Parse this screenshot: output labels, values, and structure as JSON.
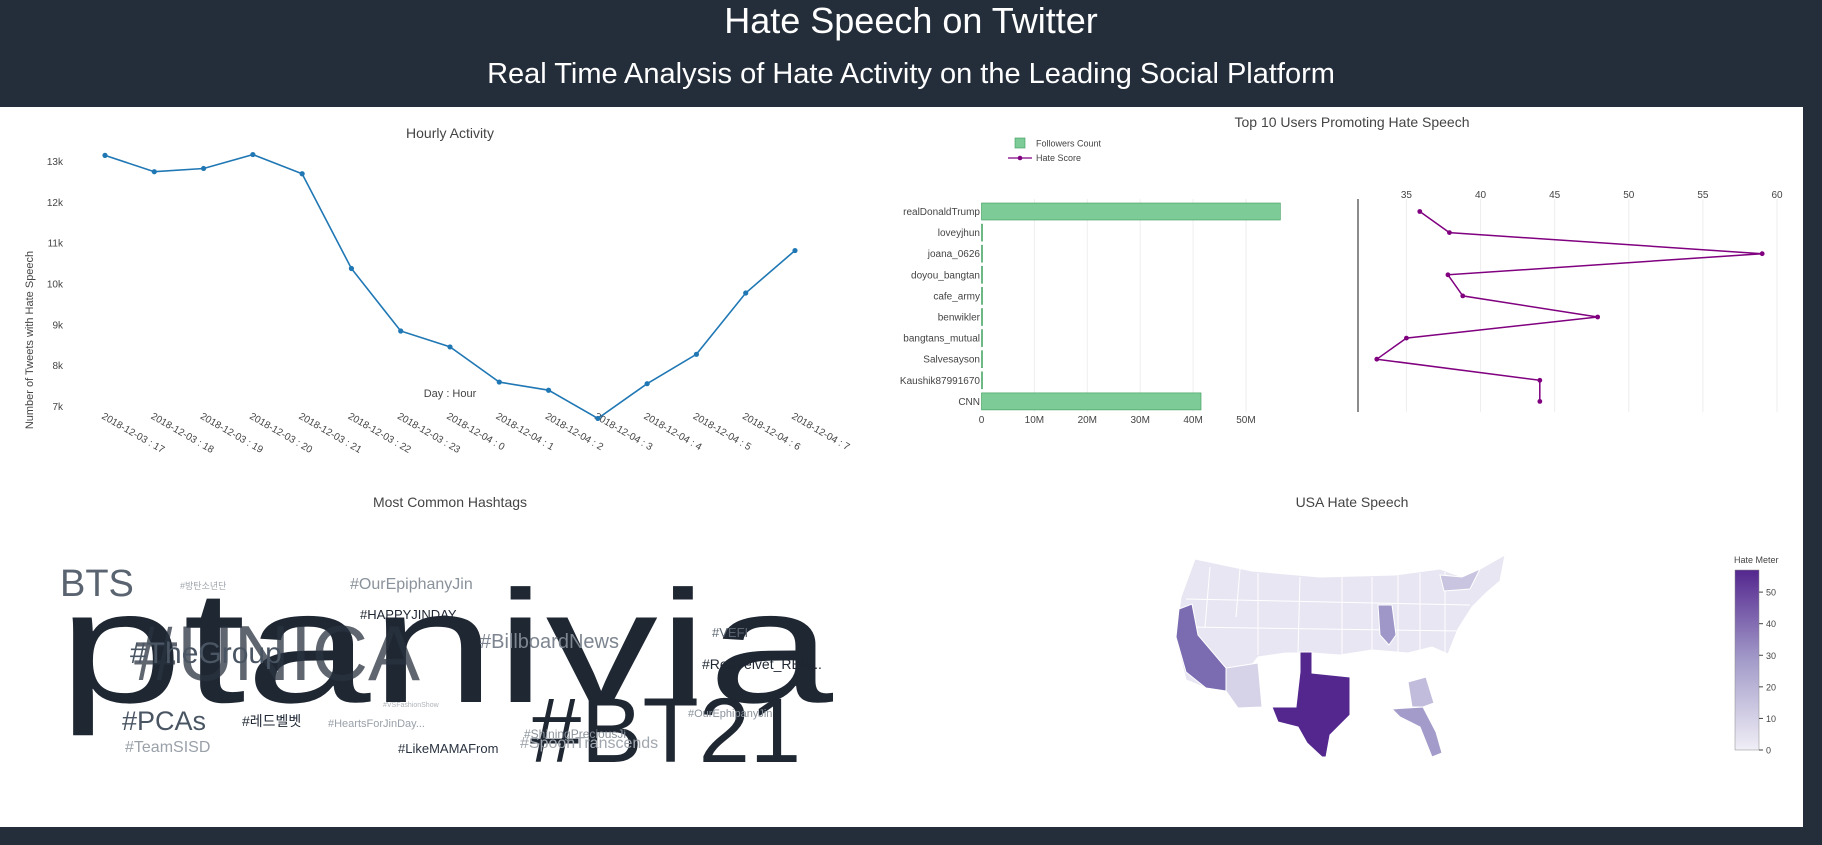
{
  "header": {
    "title": "Hate Speech on Twitter",
    "subtitle": "Real Time Analysis of Hate Activity on the Leading Social Platform"
  },
  "colors": {
    "header_bg": "#242e3b",
    "line": "#1f77b4",
    "bar": "#7dcc97",
    "bar_edge": "#3a9a5a",
    "score": "#800080",
    "map_low": "#f0eef6",
    "map_high": "#54278f"
  },
  "chart_data": [
    {
      "id": "hourly",
      "type": "line",
      "title": "Hourly Activity",
      "xlabel": "Day : Hour",
      "ylabel": "Number of Tweets with Hate Speech",
      "categories": [
        "2018-12-03 : 17",
        "2018-12-03 : 18",
        "2018-12-03 : 19",
        "2018-12-03 : 20",
        "2018-12-03 : 21",
        "2018-12-03 : 22",
        "2018-12-03 : 23",
        "2018-12-04 : 0",
        "2018-12-04 : 1",
        "2018-12-04 : 2",
        "2018-12-04 : 3",
        "2018-12-04 : 4",
        "2018-12-04 : 5",
        "2018-12-04 : 6",
        "2018-12-04 : 7"
      ],
      "values": [
        13150,
        12750,
        12830,
        13170,
        12700,
        10380,
        8850,
        8460,
        7600,
        7400,
        6710,
        7560,
        8280,
        9780,
        10820
      ],
      "yticks": [
        "7k",
        "8k",
        "9k",
        "10k",
        "11k",
        "12k",
        "13k"
      ],
      "ylim": [
        6500,
        13600
      ],
      "grid": false
    },
    {
      "id": "top_users",
      "type": "bar",
      "title": "Top 10 Users Promoting Hate Speech",
      "categories": [
        "realDonaldTrump",
        "loveyjhun",
        "joana_0626",
        "doyou_bangtan",
        "cafe_army",
        "benwikler",
        "bangtans_mutual",
        "Salvesayson",
        "Kaushik87991670",
        "CNN"
      ],
      "series": [
        {
          "name": "Followers Count",
          "type": "bar",
          "values": [
            56500000,
            0,
            50000,
            100000,
            80000,
            150000,
            60000,
            150000,
            3000,
            41500000
          ]
        },
        {
          "name": "Hate Score",
          "type": "line",
          "values": [
            35.9,
            37.9,
            59,
            37.8,
            38.8,
            47.9,
            35,
            33,
            44,
            44
          ]
        }
      ],
      "followers_ticks": [
        "0",
        "10M",
        "20M",
        "30M",
        "40M",
        "50M"
      ],
      "followers_range": [
        0,
        57000000
      ],
      "score_ticks": [
        "35",
        "40",
        "45",
        "50",
        "55",
        "60"
      ],
      "score_range": [
        31.8,
        60
      ],
      "legend_position": "top-left"
    },
    {
      "id": "hashtags",
      "type": "wordcloud",
      "title": "Most Common Hashtags",
      "words": [
        {
          "text": "ptanivia",
          "color": "#1f2733"
        },
        {
          "text": "#BT21",
          "color": "#1f2733"
        },
        {
          "text": "#UNICA",
          "color": "#2a3340"
        },
        {
          "text": "#TheGroup",
          "color": "#4a5563"
        },
        {
          "text": "BTS",
          "color": "#5a6470"
        },
        {
          "text": "#방탄소년단",
          "color": "#a0a6ad"
        },
        {
          "text": "#OurEpiphanyJin",
          "color": "#8a929b"
        },
        {
          "text": "#HAPPYJINDAY",
          "color": "#1f2733"
        },
        {
          "text": "#BillboardNews",
          "color": "#7d8590"
        },
        {
          "text": "#VEFI",
          "color": "#5a6470"
        },
        {
          "text": "#RedVelvet_RBB...",
          "color": "#1f2733"
        },
        {
          "text": "#PCAs",
          "color": "#4a5563"
        },
        {
          "text": "#레드벨벳",
          "color": "#1f2733"
        },
        {
          "text": "#HeartsForJinDay...",
          "color": "#9aa1a9"
        },
        {
          "text": "#VSFashionShow",
          "color": "#b0b5bb"
        },
        {
          "text": "#ShiningPreciousJi",
          "color": "#8a929b"
        },
        {
          "text": "#SpoonTranscends",
          "color": "#a0a6ad"
        },
        {
          "text": "#OurEphipanyJin",
          "color": "#8a929b"
        },
        {
          "text": "#TeamSISD",
          "color": "#9aa1a9"
        },
        {
          "text": "#LikeMAMAFrom",
          "color": "#2a3340"
        }
      ]
    },
    {
      "id": "usa_map",
      "type": "heatmap",
      "title": "USA Hate Speech",
      "colorbar_title": "Hate Meter",
      "colorbar_ticks": [
        "0",
        "10",
        "20",
        "30",
        "40",
        "50"
      ],
      "range": [
        0,
        57
      ],
      "regions": [
        {
          "name": "TX",
          "value": 57
        },
        {
          "name": "CA",
          "value": 41
        },
        {
          "name": "FL",
          "value": 20
        },
        {
          "name": "IL",
          "value": 16
        },
        {
          "name": "GA",
          "value": 14
        },
        {
          "name": "NY",
          "value": 12
        },
        {
          "name": "AZ",
          "value": 7
        },
        {
          "name": "Other",
          "value": 4
        }
      ]
    }
  ]
}
